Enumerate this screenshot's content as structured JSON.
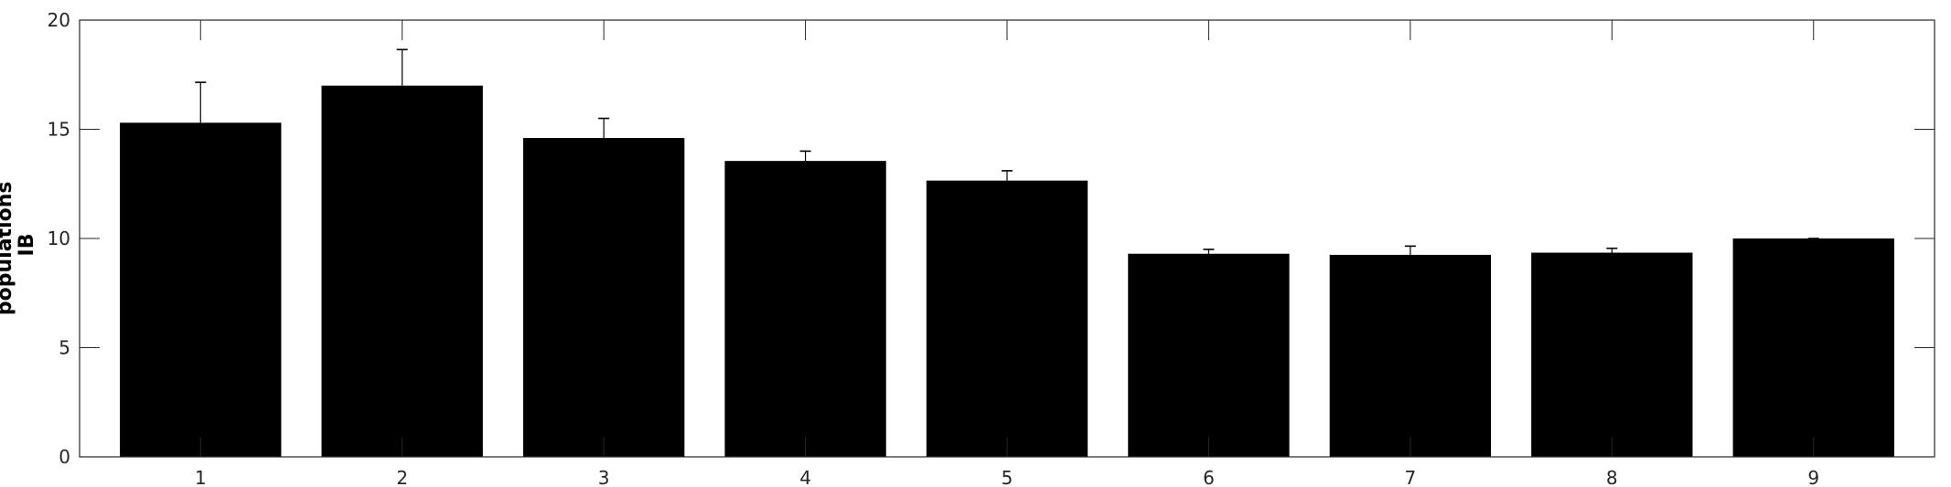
{
  "chart_data": {
    "type": "bar",
    "title": "",
    "xlabel": "",
    "ylabel_lines": [
      "populations",
      "IB"
    ],
    "categories": [
      "1",
      "2",
      "3",
      "4",
      "5",
      "6",
      "7",
      "8",
      "9"
    ],
    "values": [
      15.3,
      17.0,
      14.6,
      13.55,
      12.65,
      9.3,
      9.25,
      9.35,
      10.0
    ],
    "errors": [
      1.85,
      1.65,
      0.9,
      0.45,
      0.45,
      0.2,
      0.4,
      0.2,
      0.0
    ],
    "ylim": [
      0,
      20
    ],
    "yticks": [
      0,
      5,
      10,
      15,
      20
    ],
    "grid": false,
    "box": true,
    "colors": {
      "bar": "#000000",
      "axis": "#262626",
      "error_bar": "#000000"
    }
  }
}
